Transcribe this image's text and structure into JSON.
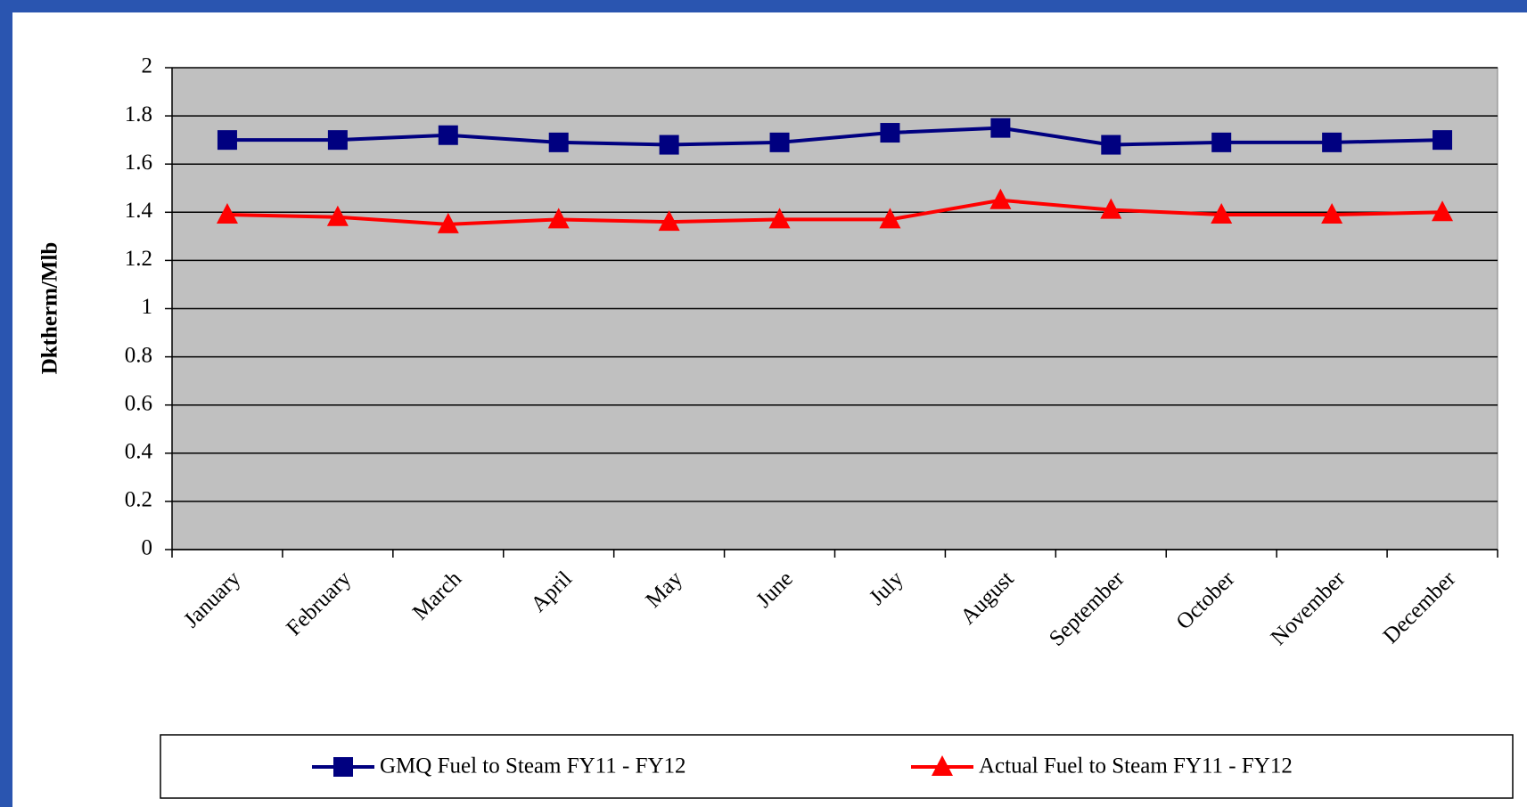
{
  "chart_data": {
    "type": "line",
    "y_label": "Dktherm/Mlb",
    "categories": [
      "January",
      "February",
      "March",
      "April",
      "May",
      "June",
      "July",
      "August",
      "September",
      "October",
      "November",
      "December"
    ],
    "series": [
      {
        "name": "GMQ Fuel to Steam FY11 - FY12",
        "color": "#000080",
        "marker": "square",
        "values": [
          1.7,
          1.7,
          1.72,
          1.69,
          1.68,
          1.69,
          1.73,
          1.75,
          1.68,
          1.69,
          1.69,
          1.7
        ]
      },
      {
        "name": "Actual Fuel to Steam FY11 - FY12",
        "color": "#ff0000",
        "marker": "triangle",
        "values": [
          1.39,
          1.38,
          1.35,
          1.37,
          1.36,
          1.37,
          1.37,
          1.45,
          1.41,
          1.39,
          1.39,
          1.4
        ]
      }
    ],
    "ylim": [
      0,
      2
    ],
    "yticks": [
      0,
      0.2,
      0.4,
      0.6,
      0.8,
      1,
      1.2,
      1.4,
      1.6,
      1.8,
      2
    ],
    "grid": true,
    "legend": "bottom"
  }
}
